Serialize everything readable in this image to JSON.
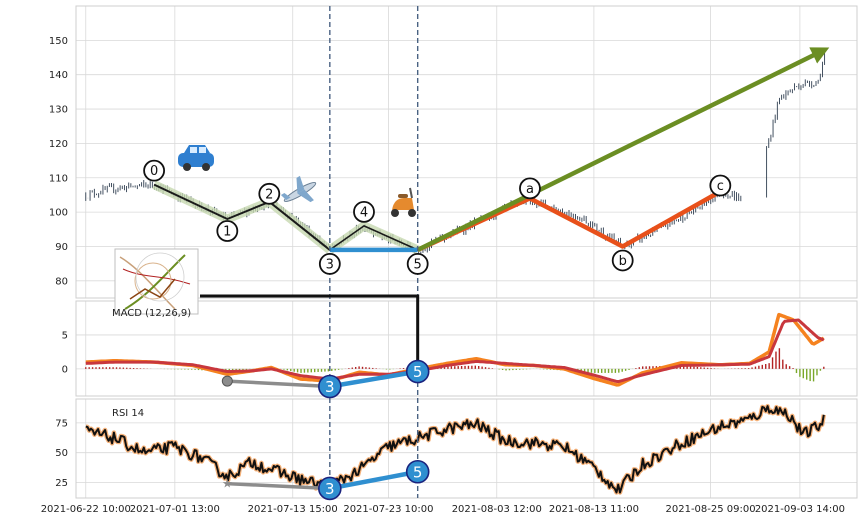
{
  "chart_data": {
    "type": "line",
    "title": "",
    "x_ticks": [
      "2021-06-22 10:00",
      "2021-07-01 13:00",
      "2021-07-13 15:00",
      "2021-07-23 10:00",
      "2021-08-03 12:00",
      "2021-08-13 11:00",
      "2021-08-25 09:00",
      "2021-09-03 14:00"
    ],
    "panels": [
      {
        "name": "price",
        "type": "candlestick",
        "ylim": [
          75,
          160
        ],
        "yticks": [
          80,
          90,
          100,
          110,
          120,
          130,
          140,
          150
        ],
        "wave_labels": [
          {
            "label": "0",
            "x": 7.0,
            "y": 108
          },
          {
            "label": "1",
            "x": 14.5,
            "y": 98
          },
          {
            "label": "2",
            "x": 18.8,
            "y": 103
          },
          {
            "label": "3",
            "x": 25.0,
            "y": 89
          },
          {
            "label": "4",
            "x": 28.5,
            "y": 96
          },
          {
            "label": "5",
            "x": 34.0,
            "y": 89
          },
          {
            "label": "a",
            "x": 45.5,
            "y": 104
          },
          {
            "label": "b",
            "x": 55.0,
            "y": 90
          },
          {
            "label": "c",
            "x": 65.0,
            "y": 106
          }
        ],
        "series_segments": [
          {
            "name": "",
            "color": "#1a1a1a",
            "points": [
              [
                7.0,
                108
              ],
              [
                14.5,
                98
              ],
              [
                18.8,
                103
              ],
              [
                25.0,
                89
              ]
            ]
          },
          {
            "name": "",
            "color": "#2f8fd0",
            "points": [
              [
                25.0,
                89
              ],
              [
                34.0,
                89
              ]
            ]
          },
          {
            "name": "",
            "color": "#e8501a",
            "points": [
              [
                34.0,
                89
              ],
              [
                45.5,
                104
              ],
              [
                55.0,
                90
              ],
              [
                65.0,
                106
              ]
            ]
          },
          {
            "name": "",
            "color": "#6b8e23",
            "points": [
              [
                34.0,
                89
              ],
              [
                75.5,
                147
              ]
            ]
          }
        ],
        "vlines_x": [
          25.0,
          34.0
        ],
        "icons": [
          "car-icon",
          "airplane-icon",
          "scooter-icon"
        ]
      },
      {
        "name": "macd",
        "label": "MACD (12,26,9)",
        "ylim": [
          -4,
          10
        ],
        "yticks": [
          0,
          5
        ],
        "markers": [
          {
            "label": "3",
            "x": 25.0,
            "y": -2.6
          },
          {
            "label": "5",
            "x": 34.0,
            "y": -0.4
          }
        ]
      },
      {
        "name": "rsi",
        "label": "RSI 14",
        "ylim": [
          12,
          95
        ],
        "yticks": [
          25,
          50,
          75
        ],
        "markers": [
          {
            "label": "3",
            "x": 25.0,
            "y": 20
          },
          {
            "label": "5",
            "x": 34.0,
            "y": 34
          }
        ]
      }
    ],
    "x_range": [
      -1,
      79
    ],
    "grid": true,
    "colors": {
      "macd_orange": "#f5821f",
      "macd_red": "#c8373d",
      "hist_red": "#b22222",
      "hist_green": "#7aa72a",
      "rsi_line": "#111111",
      "rsi_glow": "#f5b27a",
      "candle": "#2f3e50"
    }
  }
}
